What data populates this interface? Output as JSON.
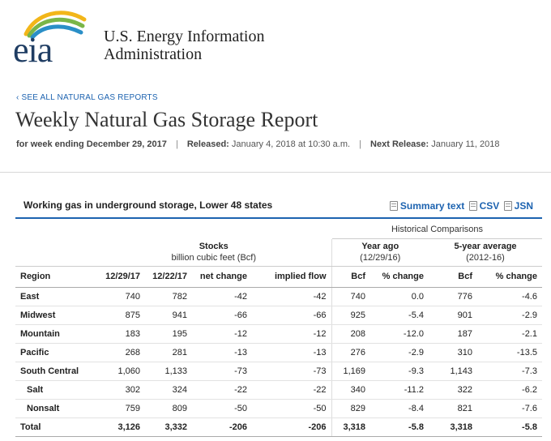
{
  "org": {
    "logo_text": "eia",
    "name_line1": "U.S. Energy Information",
    "name_line2": "Administration"
  },
  "nav": {
    "see_all": "‹ SEE ALL NATURAL GAS REPORTS"
  },
  "page": {
    "title": "Weekly Natural Gas Storage Report",
    "week_ending": "for week ending December 29, 2017",
    "released_label": "Released:",
    "released_value": "January 4, 2018 at 10:30 a.m.",
    "next_label": "Next Release:",
    "next_value": "January 11, 2018",
    "separator": "|"
  },
  "table": {
    "title": "Working gas in underground storage, Lower 48 states",
    "downloads": {
      "summary": "Summary text",
      "csv": "CSV",
      "json": "JSN"
    },
    "historical_label": "Historical Comparisons",
    "stocks_label": "Stocks",
    "stocks_unit": "billion cubic feet (Bcf)",
    "year_ago_label": "Year ago",
    "year_ago_date": "(12/29/16)",
    "five_year_label": "5-year average",
    "five_year_range": "(2012-16)",
    "columns": [
      "Region",
      "12/29/17",
      "12/22/17",
      "net change",
      "implied flow",
      "Bcf",
      "% change",
      "Bcf",
      "% change"
    ],
    "rows": [
      {
        "region": "East",
        "sub": false,
        "v": [
          "740",
          "782",
          "-42",
          "-42",
          "740",
          "0.0",
          "776",
          "-4.6"
        ]
      },
      {
        "region": "Midwest",
        "sub": false,
        "v": [
          "875",
          "941",
          "-66",
          "-66",
          "925",
          "-5.4",
          "901",
          "-2.9"
        ]
      },
      {
        "region": "Mountain",
        "sub": false,
        "v": [
          "183",
          "195",
          "-12",
          "-12",
          "208",
          "-12.0",
          "187",
          "-2.1"
        ]
      },
      {
        "region": "Pacific",
        "sub": false,
        "v": [
          "268",
          "281",
          "-13",
          "-13",
          "276",
          "-2.9",
          "310",
          "-13.5"
        ]
      },
      {
        "region": "South Central",
        "sub": false,
        "v": [
          "1,060",
          "1,133",
          "-73",
          "-73",
          "1,169",
          "-9.3",
          "1,143",
          "-7.3"
        ]
      },
      {
        "region": "Salt",
        "sub": true,
        "v": [
          "302",
          "324",
          "-22",
          "-22",
          "340",
          "-11.2",
          "322",
          "-6.2"
        ]
      },
      {
        "region": "Nonsalt",
        "sub": true,
        "v": [
          "759",
          "809",
          "-50",
          "-50",
          "829",
          "-8.4",
          "821",
          "-7.6"
        ]
      },
      {
        "region": "Total",
        "sub": false,
        "total": true,
        "v": [
          "3,126",
          "3,332",
          "-206",
          "-206",
          "3,318",
          "-5.8",
          "3,318",
          "-5.8"
        ]
      }
    ]
  },
  "colors": {
    "brand_blue": "#1d63b0",
    "logo_navy": "#1f3d63"
  }
}
